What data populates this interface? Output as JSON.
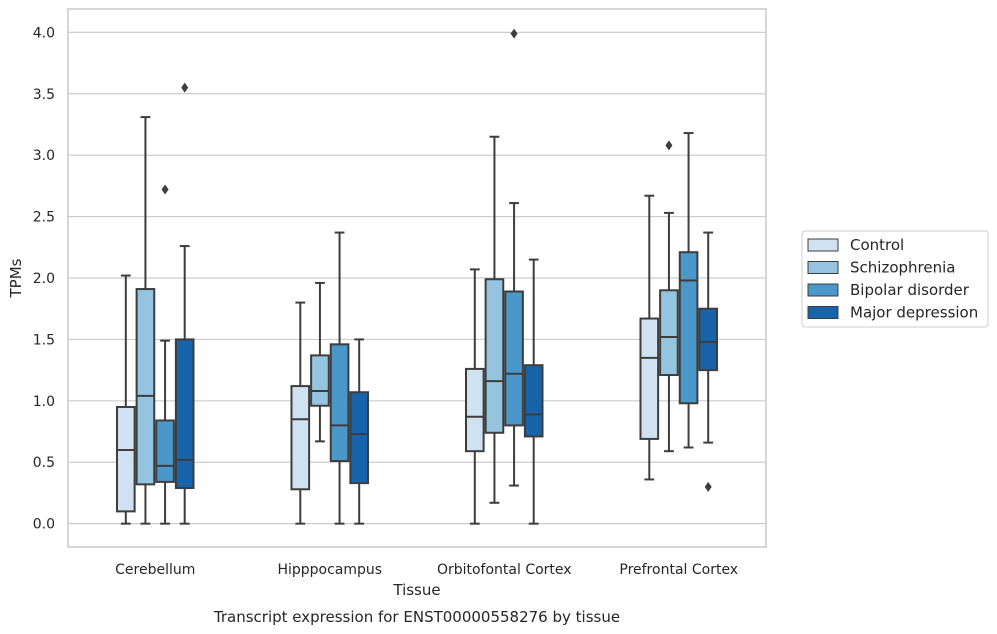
{
  "chart_data": {
    "type": "boxplot",
    "title": "",
    "xlabel": "Tissue",
    "ylabel": "TPMs",
    "caption": "Transcript expression for ENST00000558276 by tissue",
    "categories": [
      "Cerebellum",
      "Hipppocampus",
      "Orbitofontal Cortex",
      "Prefrontal Cortex"
    ],
    "ylim": [
      -0.19,
      4.19
    ],
    "yticks": [
      "0.0",
      "0.5",
      "1.0",
      "1.5",
      "2.0",
      "2.5",
      "3.0",
      "3.5",
      "4.0"
    ],
    "grid": true,
    "legend_position": "right",
    "colors": [
      "#d0e1f2",
      "#94c4df",
      "#4a98c9",
      "#1764ab"
    ],
    "series": [
      {
        "name": "Control",
        "boxes": [
          {
            "whislo": 0.0,
            "q1": 0.1,
            "med": 0.6,
            "q3": 0.95,
            "whishi": 2.02,
            "fliers": []
          },
          {
            "whislo": 0.0,
            "q1": 0.28,
            "med": 0.85,
            "q3": 1.12,
            "whishi": 1.8,
            "fliers": []
          },
          {
            "whislo": 0.0,
            "q1": 0.59,
            "med": 0.87,
            "q3": 1.26,
            "whishi": 2.07,
            "fliers": []
          },
          {
            "whislo": 0.36,
            "q1": 0.69,
            "med": 1.35,
            "q3": 1.67,
            "whishi": 2.67,
            "fliers": []
          }
        ]
      },
      {
        "name": "Schizophrenia",
        "boxes": [
          {
            "whislo": 0.0,
            "q1": 0.32,
            "med": 1.04,
            "q3": 1.91,
            "whishi": 3.31,
            "fliers": []
          },
          {
            "whislo": 0.67,
            "q1": 0.96,
            "med": 1.08,
            "q3": 1.37,
            "whishi": 1.96,
            "fliers": []
          },
          {
            "whislo": 0.17,
            "q1": 0.74,
            "med": 1.16,
            "q3": 1.99,
            "whishi": 3.15,
            "fliers": []
          },
          {
            "whislo": 0.59,
            "q1": 1.21,
            "med": 1.52,
            "q3": 1.9,
            "whishi": 2.53,
            "fliers": [
              3.08
            ]
          }
        ]
      },
      {
        "name": "Bipolar disorder",
        "boxes": [
          {
            "whislo": 0.0,
            "q1": 0.34,
            "med": 0.47,
            "q3": 0.84,
            "whishi": 1.49,
            "fliers": [
              2.72
            ]
          },
          {
            "whislo": 0.0,
            "q1": 0.51,
            "med": 0.8,
            "q3": 1.46,
            "whishi": 2.37,
            "fliers": []
          },
          {
            "whislo": 0.31,
            "q1": 0.8,
            "med": 1.22,
            "q3": 1.89,
            "whishi": 2.61,
            "fliers": [
              3.99
            ]
          },
          {
            "whislo": 0.62,
            "q1": 0.98,
            "med": 1.98,
            "q3": 2.21,
            "whishi": 3.18,
            "fliers": []
          }
        ]
      },
      {
        "name": "Major depression",
        "boxes": [
          {
            "whislo": 0.0,
            "q1": 0.29,
            "med": 0.52,
            "q3": 1.5,
            "whishi": 2.26,
            "fliers": [
              3.55
            ]
          },
          {
            "whislo": 0.0,
            "q1": 0.33,
            "med": 0.73,
            "q3": 1.07,
            "whishi": 1.5,
            "fliers": []
          },
          {
            "whislo": 0.0,
            "q1": 0.71,
            "med": 0.89,
            "q3": 1.29,
            "whishi": 2.15,
            "fliers": []
          },
          {
            "whislo": 0.66,
            "q1": 1.25,
            "med": 1.48,
            "q3": 1.75,
            "whishi": 2.37,
            "fliers": [
              0.3
            ]
          }
        ]
      }
    ]
  }
}
